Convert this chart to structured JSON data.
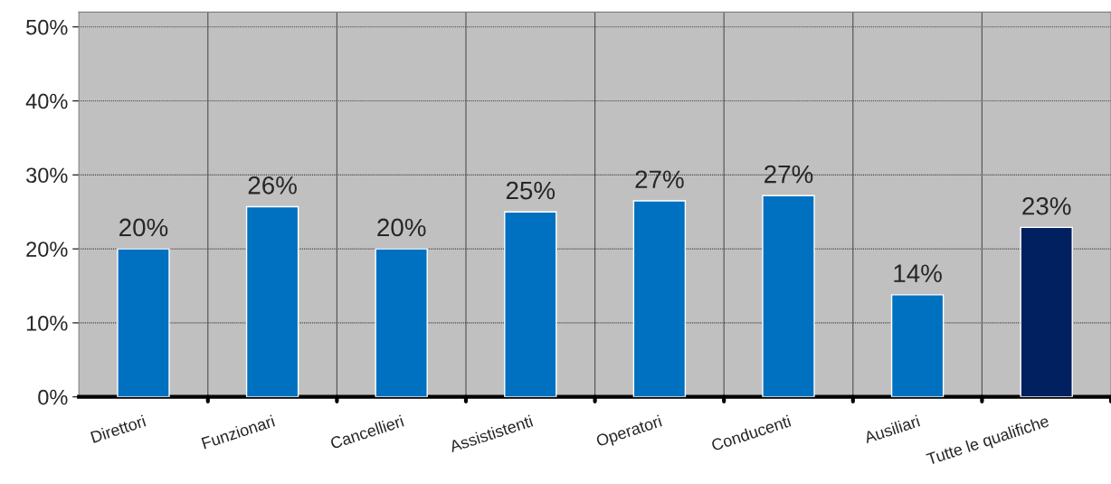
{
  "chart_data": {
    "type": "bar",
    "categories": [
      "Direttori",
      "Funzionari",
      "Cancellieri",
      "Assististenti",
      "Operatori",
      "Conducenti",
      "Ausiliari",
      "Tutte le qualifiche"
    ],
    "values": [
      20,
      25.7,
      20,
      25,
      26.5,
      27.2,
      13.8,
      22.9
    ],
    "value_labels": [
      "20%",
      "26%",
      "20%",
      "25%",
      "27%",
      "27%",
      "14%",
      "23%"
    ],
    "colors": [
      "#0070c0",
      "#0070c0",
      "#0070c0",
      "#0070c0",
      "#0070c0",
      "#0070c0",
      "#0070c0",
      "#002060"
    ],
    "ylim": [
      0,
      52
    ],
    "yticks": [
      {
        "value": 0,
        "label": "0%"
      },
      {
        "value": 10,
        "label": "10%"
      },
      {
        "value": 20,
        "label": "20%"
      },
      {
        "value": 30,
        "label": "30%"
      },
      {
        "value": 40,
        "label": "40%"
      },
      {
        "value": 50,
        "label": "50%"
      }
    ],
    "grid": true
  }
}
